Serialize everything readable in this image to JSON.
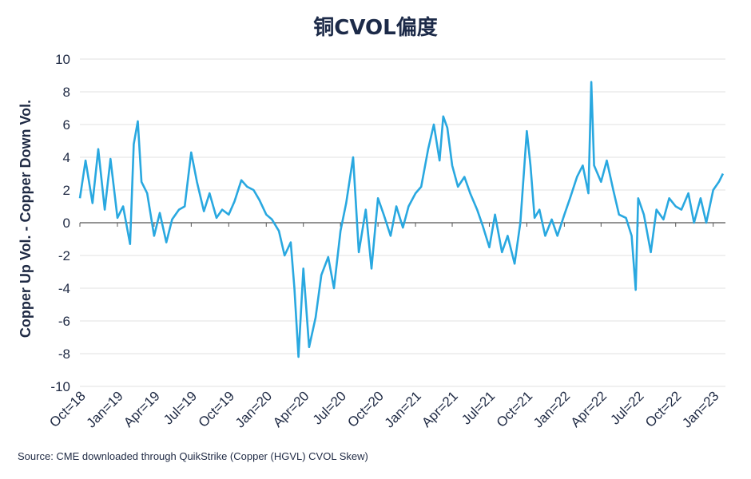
{
  "chart_data": {
    "type": "line",
    "title": "铜CVOL偏度",
    "ylabel": "Copper Up Vol. - Copper Down Vol.",
    "xlabel": "",
    "ylim": [
      -10,
      10
    ],
    "yticks": [
      10,
      8,
      6,
      4,
      2,
      0,
      -2,
      -4,
      -6,
      -8,
      -10
    ],
    "x_tick_labels": [
      "Oct=18",
      "Jan=19",
      "Apr=19",
      "Jul=19",
      "Oct=19",
      "Jan=20",
      "Apr=20",
      "Jul=20",
      "Oct=20",
      "Jan=21",
      "Apr=21",
      "Jul=21",
      "Oct=21",
      "Jan=22",
      "Apr=22",
      "Jul=22",
      "Oct=22",
      "Jan=23"
    ],
    "grid": "horizontal",
    "legend": "none",
    "line_color": "#29a8e0",
    "series": [
      {
        "x": [
          "2018-10-01",
          "2018-10-15",
          "2018-11-01",
          "2018-11-15",
          "2018-12-01",
          "2018-12-15",
          "2019-01-01",
          "2019-01-15",
          "2019-02-01",
          "2019-02-10",
          "2019-02-20",
          "2019-03-01",
          "2019-03-15",
          "2019-04-01",
          "2019-04-15",
          "2019-05-01",
          "2019-05-15",
          "2019-06-01",
          "2019-06-15",
          "2019-07-01",
          "2019-07-15",
          "2019-08-01",
          "2019-08-15",
          "2019-09-01",
          "2019-09-15",
          "2019-10-01",
          "2019-10-15",
          "2019-11-01",
          "2019-11-15",
          "2019-12-01",
          "2019-12-15",
          "2020-01-01",
          "2020-01-15",
          "2020-02-01",
          "2020-02-15",
          "2020-03-01",
          "2020-03-10",
          "2020-03-20",
          "2020-04-01",
          "2020-04-15",
          "2020-05-01",
          "2020-05-15",
          "2020-06-01",
          "2020-06-15",
          "2020-07-01",
          "2020-07-15",
          "2020-08-01",
          "2020-08-15",
          "2020-09-01",
          "2020-09-15",
          "2020-10-01",
          "2020-10-15",
          "2020-11-01",
          "2020-11-15",
          "2020-12-01",
          "2020-12-15",
          "2021-01-01",
          "2021-01-15",
          "2021-02-01",
          "2021-02-15",
          "2021-03-01",
          "2021-03-10",
          "2021-03-20",
          "2021-04-01",
          "2021-04-15",
          "2021-05-01",
          "2021-05-15",
          "2021-06-01",
          "2021-06-15",
          "2021-07-01",
          "2021-07-15",
          "2021-08-01",
          "2021-08-15",
          "2021-09-01",
          "2021-09-15",
          "2021-10-01",
          "2021-10-10",
          "2021-10-20",
          "2021-11-01",
          "2021-11-15",
          "2021-12-01",
          "2021-12-15",
          "2022-01-01",
          "2022-01-15",
          "2022-02-01",
          "2022-02-15",
          "2022-03-01",
          "2022-03-08",
          "2022-03-15",
          "2022-04-01",
          "2022-04-15",
          "2022-05-01",
          "2022-05-15",
          "2022-06-01",
          "2022-06-15",
          "2022-06-25",
          "2022-07-01",
          "2022-07-15",
          "2022-08-01",
          "2022-08-15",
          "2022-09-01",
          "2022-09-15",
          "2022-10-01",
          "2022-10-15",
          "2022-11-01",
          "2022-11-15",
          "2022-12-01",
          "2022-12-15",
          "2023-01-01",
          "2023-01-15",
          "2023-01-25"
        ],
        "y": [
          1.5,
          3.8,
          1.2,
          4.5,
          0.8,
          3.9,
          0.3,
          1.0,
          -1.3,
          4.8,
          6.2,
          2.5,
          1.8,
          -0.8,
          0.6,
          -1.2,
          0.2,
          0.8,
          1.0,
          4.3,
          2.5,
          0.7,
          1.8,
          0.3,
          0.8,
          0.5,
          1.3,
          2.6,
          2.2,
          2.0,
          1.4,
          0.5,
          0.2,
          -0.5,
          -2.0,
          -1.2,
          -4.0,
          -8.2,
          -2.8,
          -7.6,
          -5.8,
          -3.2,
          -2.1,
          -4.0,
          -0.5,
          1.2,
          4.0,
          -1.8,
          0.8,
          -2.8,
          1.5,
          0.5,
          -0.8,
          1.0,
          -0.3,
          1.0,
          1.8,
          2.2,
          4.5,
          6.0,
          3.8,
          6.5,
          5.8,
          3.5,
          2.2,
          2.8,
          1.8,
          0.8,
          -0.2,
          -1.5,
          0.5,
          -1.8,
          -0.8,
          -2.5,
          0.0,
          5.6,
          3.5,
          0.3,
          0.8,
          -0.8,
          0.2,
          -0.8,
          0.5,
          1.5,
          2.8,
          3.5,
          1.8,
          8.6,
          3.5,
          2.5,
          3.8,
          2.0,
          0.5,
          0.3,
          -0.8,
          -4.1,
          1.5,
          0.5,
          -1.8,
          0.8,
          0.2,
          1.5,
          1.0,
          0.8,
          1.8,
          0.0,
          1.5,
          0.0,
          2.0,
          2.5,
          3.0
        ]
      }
    ]
  },
  "source_note": "Source: CME downloaded through QuikStrike (Copper (HGVL) CVOL Skew)"
}
